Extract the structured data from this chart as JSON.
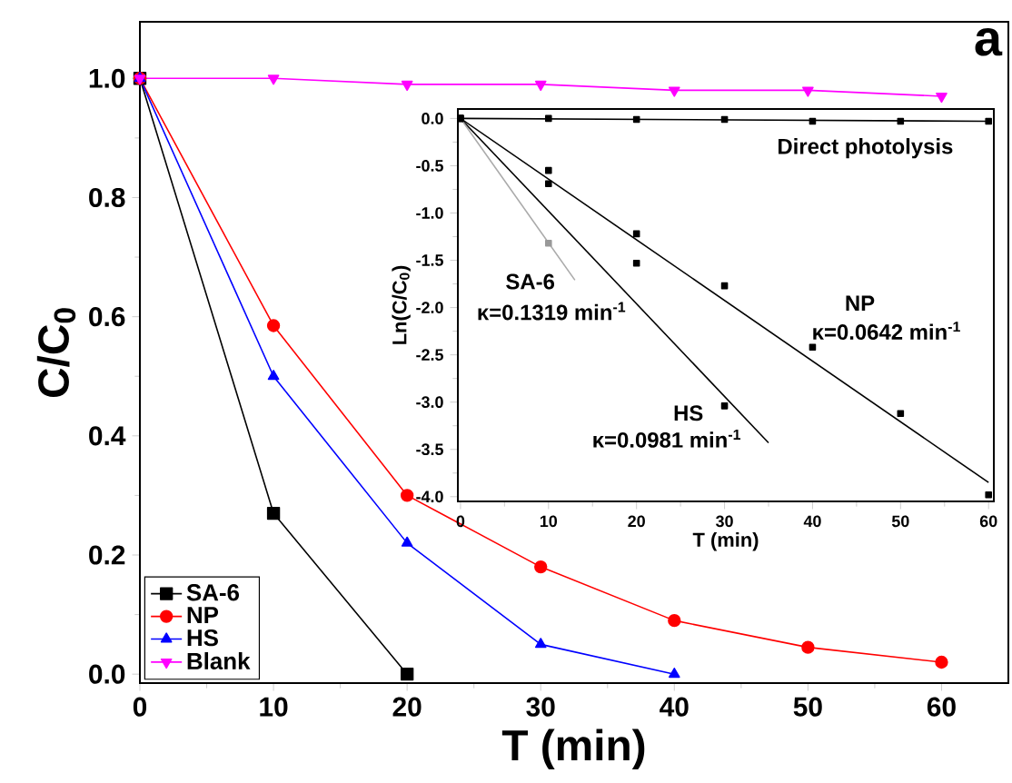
{
  "chart_data": [
    {
      "type": "line",
      "xlabel": "T (min)",
      "ylabel": "C/C$_{0}$",
      "xlim": [
        0,
        65
      ],
      "ylim": [
        -0.015,
        1.095
      ],
      "xticks": [
        0,
        10,
        20,
        30,
        40,
        50,
        60
      ],
      "yticks": [
        {
          "value": 0,
          "label": "0.0"
        },
        {
          "value": 0.2,
          "label": "0.2"
        },
        {
          "value": 0.4,
          "label": "0.4"
        },
        {
          "value": 0.6,
          "label": "0.6"
        },
        {
          "value": 0.8,
          "label": "0.8"
        },
        {
          "value": 1.0,
          "label": "1.0"
        }
      ],
      "legend": "bottom left",
      "annotations": [
        "a"
      ],
      "series": [
        {
          "name": "SA-6",
          "color": "#000000",
          "marker": "square",
          "x": [
            0,
            10,
            20
          ],
          "values": [
            1.0,
            0.27,
            0.0
          ]
        },
        {
          "name": "NP",
          "color": "#ff0000",
          "marker": "circle",
          "x": [
            0,
            10,
            20,
            30,
            40,
            50,
            60
          ],
          "values": [
            1.0,
            0.585,
            0.3,
            0.18,
            0.09,
            0.045,
            0.02
          ]
        },
        {
          "name": "HS",
          "color": "#0000ff",
          "marker": "triangle",
          "x": [
            0,
            10,
            20,
            30,
            40
          ],
          "values": [
            1.0,
            0.5,
            0.22,
            0.05,
            0.0
          ]
        },
        {
          "name": "Blank",
          "color": "#ff00ff",
          "marker": "triangle-down",
          "x": [
            0,
            10,
            20,
            30,
            40,
            50,
            60
          ],
          "values": [
            1.0,
            1.0,
            0.99,
            0.99,
            0.98,
            0.98,
            0.97
          ]
        }
      ]
    },
    {
      "type": "scatter",
      "xlabel": "T (min)",
      "ylabel": "Ln(C/C$_{0}$)",
      "xlim": [
        -0.3,
        60.6
      ],
      "ylim": [
        -4.05,
        0.1
      ],
      "xticks": [
        0,
        10,
        20,
        30,
        40,
        50,
        60
      ],
      "yticks": [
        {
          "value": 0,
          "label": "0.0"
        },
        {
          "value": -0.5,
          "label": "-0.5"
        },
        {
          "value": -1,
          "label": "-1.0"
        },
        {
          "value": -1.5,
          "label": "-1.5"
        },
        {
          "value": -2,
          "label": "-2.0"
        },
        {
          "value": -2.5,
          "label": "-2.5"
        },
        {
          "value": -3,
          "label": "-3.0"
        },
        {
          "value": -3.5,
          "label": "-3.5"
        },
        {
          "value": -4,
          "label": "-4.0"
        }
      ],
      "marker": "square",
      "annotations": [
        "Direct photolysis",
        "SA-6",
        "κ=0.1319 min$^{-1}$",
        "NP",
        "κ=0.0642 min$^{-1}$",
        "HS",
        "κ=0.0981 min$^{-1}$"
      ],
      "series": [
        {
          "color": "#000000",
          "x": [
            0,
            10,
            20,
            30,
            40,
            50,
            60
          ],
          "values": [
            0,
            0,
            -0.01,
            -0.01,
            -0.03,
            -0.03,
            -0.03
          ]
        },
        {
          "color": "#000000",
          "x": [
            0,
            10,
            20,
            30,
            40,
            50,
            60
          ],
          "values": [
            0,
            -0.55,
            -1.22,
            -1.77,
            -2.42,
            -3.12,
            -3.98
          ]
        },
        {
          "color": "#000000",
          "x": [
            0,
            10,
            20,
            30
          ],
          "values": [
            0,
            -0.69,
            -1.53,
            -3.04
          ]
        },
        {
          "color": "#999999",
          "x": [
            10
          ],
          "values": [
            -1.32
          ]
        },
        {
          "type": "line",
          "marker": "none",
          "color": "#000000",
          "x": [
            0,
            60
          ],
          "values": [
            0,
            -0.03
          ]
        },
        {
          "type": "line",
          "marker": "none",
          "color": "#000000",
          "x": [
            0,
            60
          ],
          "values": [
            0,
            -3.85
          ]
        },
        {
          "type": "line",
          "marker": "none",
          "color": "#000000",
          "x": [
            0,
            35
          ],
          "values": [
            0,
            -3.43
          ]
        },
        {
          "type": "line",
          "marker": "none",
          "color": "#aaaaaa",
          "x": [
            0,
            13
          ],
          "values": [
            0,
            -1.71
          ]
        }
      ]
    }
  ]
}
